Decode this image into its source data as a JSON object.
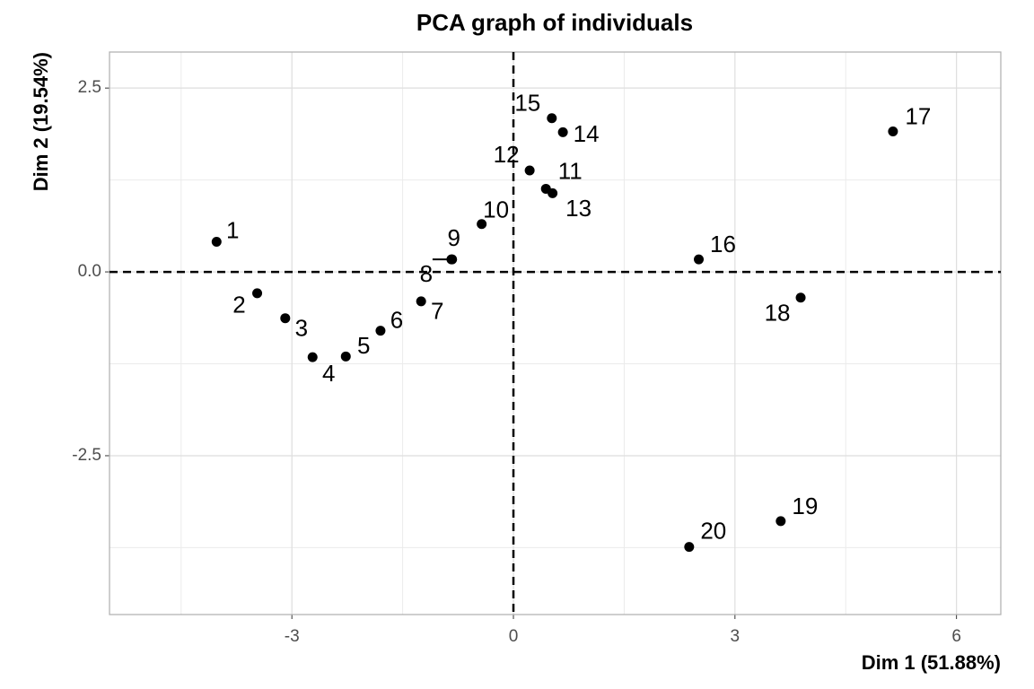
{
  "chart_data": {
    "type": "scatter",
    "title": "PCA graph of individuals",
    "x_label": "Dim 1 (51.88%)",
    "y_label": "Dim 2 (19.54%)",
    "labels": [
      "1",
      "2",
      "3",
      "4",
      "5",
      "6",
      "7",
      "8",
      "9",
      "10",
      "11",
      "12",
      "13",
      "14",
      "15",
      "16",
      "17",
      "18",
      "19",
      "20"
    ],
    "x": [
      -4.02,
      -3.47,
      -3.09,
      -2.72,
      -2.27,
      -1.8,
      -1.25,
      -0.84,
      -0.83,
      -0.43,
      0.44,
      0.22,
      0.53,
      0.67,
      0.52,
      2.51,
      5.14,
      3.89,
      3.62,
      2.38
    ],
    "y": [
      0.41,
      -0.29,
      -0.63,
      -1.16,
      -1.15,
      -0.8,
      -0.4,
      0.17,
      0.17,
      0.65,
      1.13,
      1.38,
      1.07,
      1.9,
      2.09,
      0.17,
      1.91,
      -0.35,
      -3.39,
      -3.74
    ],
    "color": "#000000",
    "xlim": [
      -5.47,
      6.6
    ],
    "ylim": [
      -4.66,
      2.99
    ],
    "xticks": [
      -3,
      0,
      3,
      6
    ],
    "yticks": [
      -2.5,
      {
        "value": 0,
        "label": "0.0"
      },
      2.5
    ],
    "grid": true,
    "minor_grid": true,
    "reference_lines": {
      "x": 0,
      "y": 0
    }
  }
}
